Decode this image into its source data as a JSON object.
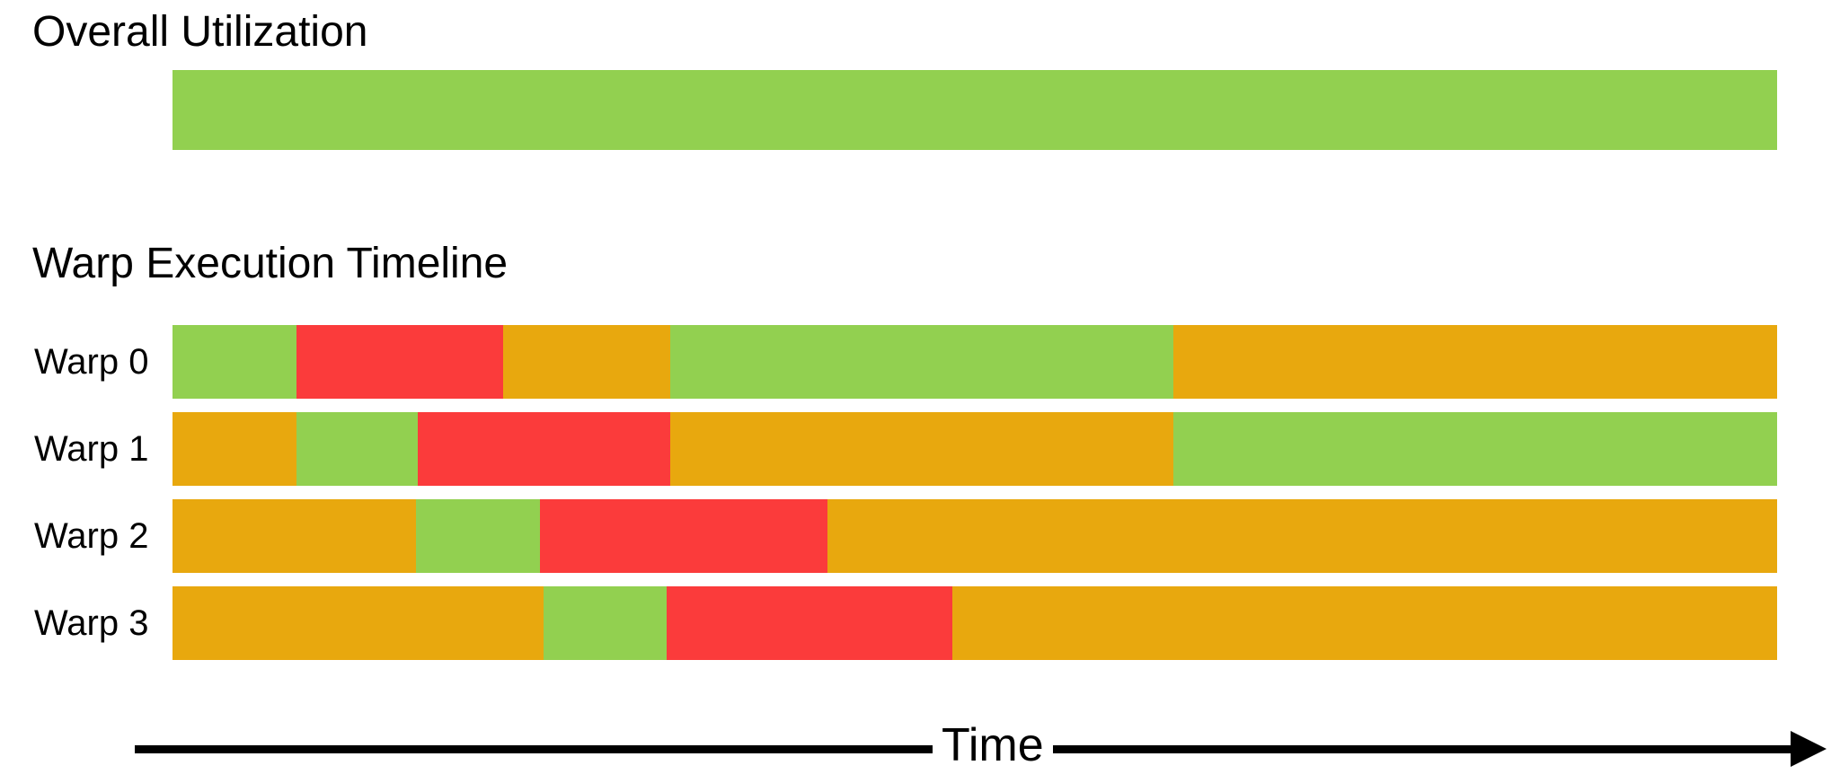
{
  "colors": {
    "green": "#92D050",
    "amber": "#E8A80E",
    "red": "#FB3B3B",
    "axis": "#000000",
    "text": "#000000"
  },
  "chart_data": {
    "type": "timeline",
    "overall_title": "Overall Utilization",
    "timeline_title": "Warp Execution Timeline",
    "xlabel": "Time",
    "x_axis_style": "arrow-right",
    "grid": false,
    "legend": false,
    "overall": {
      "segments": [
        {
          "color": "green",
          "pct": 100
        }
      ]
    },
    "rows": [
      {
        "label": "Warp 0",
        "segments": [
          {
            "color": "green",
            "pct": 7.7
          },
          {
            "color": "red",
            "pct": 12.9
          },
          {
            "color": "amber",
            "pct": 10.4
          },
          {
            "color": "green",
            "pct": 31.4
          },
          {
            "color": "amber",
            "pct": 37.6
          }
        ]
      },
      {
        "label": "Warp 1",
        "segments": [
          {
            "color": "amber",
            "pct": 7.7
          },
          {
            "color": "green",
            "pct": 7.6
          },
          {
            "color": "red",
            "pct": 15.7
          },
          {
            "color": "amber",
            "pct": 31.4
          },
          {
            "color": "green",
            "pct": 37.6
          }
        ]
      },
      {
        "label": "Warp 2",
        "segments": [
          {
            "color": "amber",
            "pct": 15.2
          },
          {
            "color": "green",
            "pct": 7.7
          },
          {
            "color": "red",
            "pct": 17.9
          },
          {
            "color": "amber",
            "pct": 59.2
          }
        ]
      },
      {
        "label": "Warp 3",
        "segments": [
          {
            "color": "amber",
            "pct": 23.1
          },
          {
            "color": "green",
            "pct": 7.7
          },
          {
            "color": "red",
            "pct": 17.8
          },
          {
            "color": "amber",
            "pct": 51.4
          }
        ]
      }
    ]
  }
}
